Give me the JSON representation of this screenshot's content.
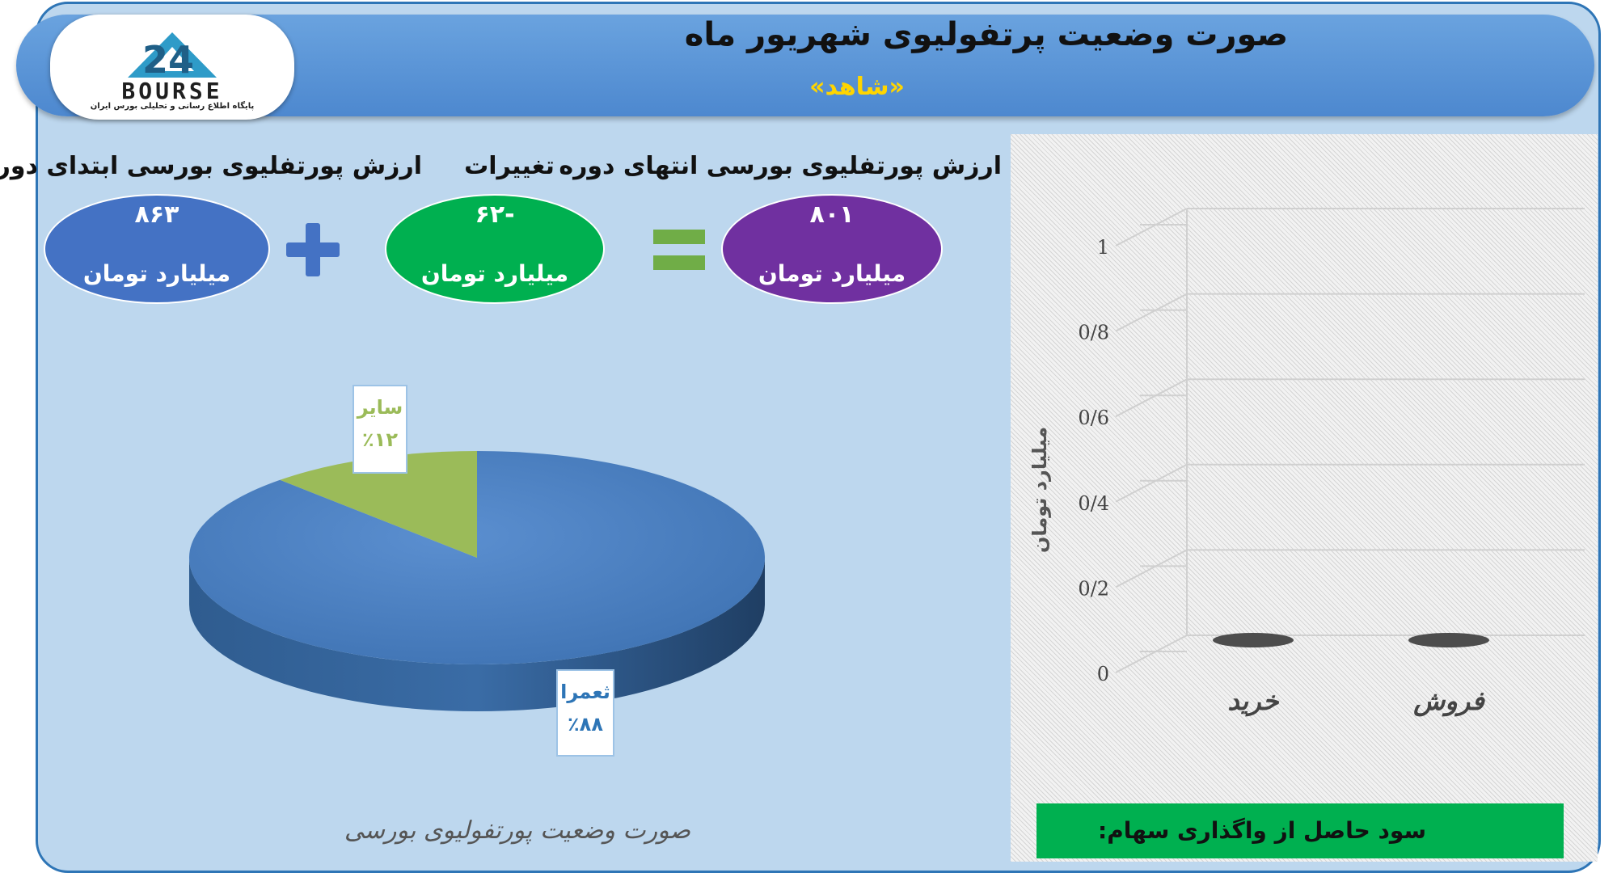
{
  "header": {
    "title": "صورت وضعیت پرتفولیوی شهریور ماه",
    "subtitle": "«شاهد»"
  },
  "logo": {
    "text": "BOURSE",
    "subtext": "پایگاه اطلاع رسانی و تحلیلی بورس ایران"
  },
  "summary": {
    "start": {
      "label": "ارزش پورتفلیوی بورسی ابتدای دوره",
      "value": "۸۶۳",
      "unit": "میلیارد تومان"
    },
    "change": {
      "label": "تغییرات",
      "value": "-۶۲",
      "unit": "میلیارد تومان"
    },
    "end": {
      "label": "ارزش پورتفلیوی بورسی انتهای دوره",
      "value": "۸۰۱",
      "unit": "میلیارد تومان"
    }
  },
  "colors": {
    "start_oval": "#4472c4",
    "change_oval": "#00b050",
    "end_oval": "#7030a0",
    "plus": "#4472c4",
    "equals": "#70ad47",
    "pie_main": "#4a7ebb",
    "pie_other": "#9bbb59"
  },
  "footer": {
    "profit_label": "سود حاصل از واگذاری سهام:"
  },
  "chart_data": [
    {
      "type": "pie",
      "title": "صورت وضعیت پورتفولیوی بورسی",
      "slices": [
        {
          "name": "ثعمرا",
          "value": 88,
          "label": "٪۸۸"
        },
        {
          "name": "سایر",
          "value": 12,
          "label": "٪۱۲"
        }
      ]
    },
    {
      "type": "bar",
      "categories": [
        "خرید",
        "فروش"
      ],
      "values": [
        0,
        0
      ],
      "ylabel": "میلیارد تومان",
      "ylim": [
        0,
        1
      ],
      "yticks": [
        "0",
        "0/2",
        "0/4",
        "0/6",
        "0/8",
        "1"
      ],
      "grid": true
    }
  ]
}
